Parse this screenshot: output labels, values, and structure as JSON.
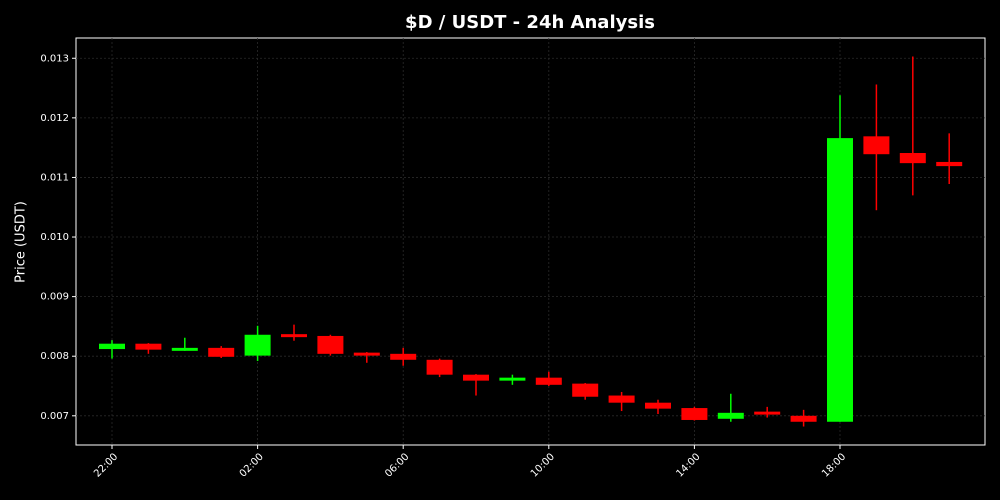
{
  "chart_data": {
    "type": "candlestick",
    "title": "$D / USDT - 24h Analysis",
    "ylabel": "Price (USDT)",
    "categories": [
      "22:00",
      null,
      null,
      null,
      "02:00",
      null,
      null,
      null,
      "06:00",
      null,
      null,
      null,
      "10:00",
      null,
      null,
      null,
      "14:00",
      null,
      null,
      null,
      "18:00",
      null,
      null,
      null
    ],
    "open": [
      0.00812,
      0.00821,
      0.00809,
      0.00814,
      0.00801,
      0.00837,
      0.00834,
      0.00806,
      0.00804,
      0.00794,
      0.00769,
      0.00759,
      0.00764,
      0.00754,
      0.00734,
      0.00722,
      0.00713,
      0.00695,
      0.00707,
      0.007,
      0.0069,
      0.01169,
      0.01141,
      0.01126
    ],
    "high": [
      0.00827,
      0.00822,
      0.00831,
      0.00817,
      0.00851,
      0.00853,
      0.00836,
      0.00807,
      0.00814,
      0.00796,
      0.0077,
      0.00769,
      0.00774,
      0.00755,
      0.0074,
      0.00727,
      0.00715,
      0.00737,
      0.00715,
      0.0071,
      0.01238,
      0.01256,
      0.01303,
      0.01174
    ],
    "low": [
      0.00796,
      0.00804,
      0.00809,
      0.00797,
      0.00792,
      0.00826,
      0.00801,
      0.00789,
      0.00784,
      0.00765,
      0.00734,
      0.00752,
      0.0075,
      0.00727,
      0.00708,
      0.00703,
      0.00692,
      0.0069,
      0.00697,
      0.00682,
      0.0069,
      0.01045,
      0.0107,
      0.01089
    ],
    "close": [
      0.00821,
      0.00811,
      0.00814,
      0.00799,
      0.00836,
      0.00832,
      0.00804,
      0.00801,
      0.00794,
      0.00769,
      0.00759,
      0.00764,
      0.00752,
      0.00732,
      0.00722,
      0.00712,
      0.00693,
      0.00705,
      0.00702,
      0.0069,
      0.01166,
      0.01139,
      0.01124,
      0.01119
    ],
    "up_color": "#00ff00",
    "down_color": "#ff0000",
    "ylim": [
      0.00651,
      0.01334
    ],
    "yticks": [
      0.007,
      0.008,
      0.009,
      {
        "value": 0.01,
        "label": "0.010"
      },
      0.011,
      0.012,
      0.013
    ],
    "grid": true
  }
}
